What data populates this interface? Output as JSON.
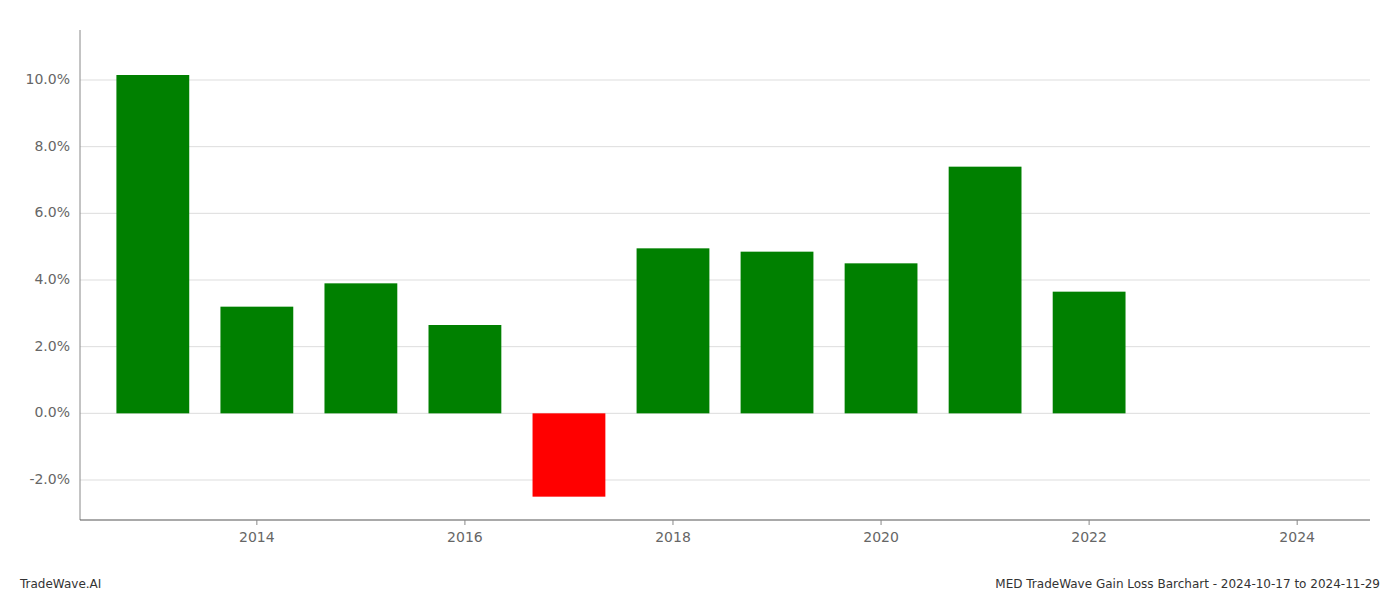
{
  "chart_data": {
    "type": "bar",
    "x": [
      2013,
      2014,
      2015,
      2016,
      2017,
      2018,
      2019,
      2020,
      2021,
      2022
    ],
    "values": [
      0.1015,
      0.032,
      0.039,
      0.0265,
      -0.025,
      0.0495,
      0.0485,
      0.045,
      0.074,
      0.0365
    ],
    "colors": [
      "#008000",
      "#008000",
      "#008000",
      "#008000",
      "#ff0000",
      "#008000",
      "#008000",
      "#008000",
      "#008000",
      "#008000"
    ],
    "xlim": [
      2012.3,
      2024.7
    ],
    "xticks": [
      2014,
      2016,
      2018,
      2020,
      2022,
      2024
    ],
    "ylim": [
      -0.032,
      0.115
    ],
    "yticks": [
      {
        "value": -0.02,
        "label": "-2.0%"
      },
      {
        "value": 0.0,
        "label": "0.0%"
      },
      {
        "value": 0.02,
        "label": "2.0%"
      },
      {
        "value": 0.04,
        "label": "4.0%"
      },
      {
        "value": 0.06,
        "label": "6.0%"
      },
      {
        "value": 0.08,
        "label": "8.0%"
      },
      {
        "value": 0.1,
        "label": "10.0%"
      }
    ],
    "grid": true,
    "annotations": [
      "TradeWave.AI",
      "MED TradeWave Gain Loss Barchart - 2024-10-17 to 2024-11-29"
    ]
  }
}
